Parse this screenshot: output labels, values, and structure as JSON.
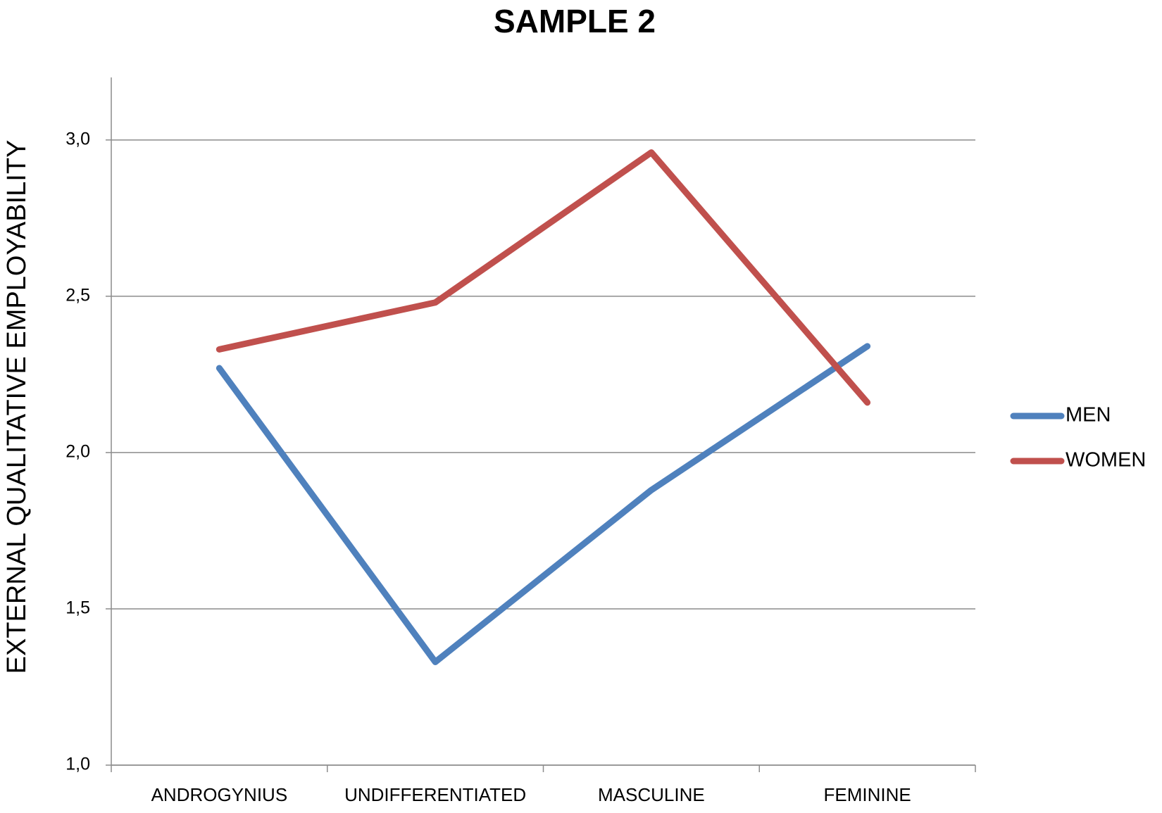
{
  "chart_data": {
    "type": "line",
    "title": "SAMPLE 2",
    "y_label": "EXTERNAL QUALITATIVE EMPLOYABILITY",
    "categories": [
      "ANDROGYNIUS",
      "UNDIFFERENTIATED",
      "MASCULINE",
      "FEMININE"
    ],
    "series": [
      {
        "name": "MEN",
        "color": "#4f81bd",
        "values": [
          2.27,
          1.33,
          1.88,
          2.34
        ]
      },
      {
        "name": "WOMEN",
        "color": "#c0504d",
        "values": [
          2.33,
          2.48,
          2.96,
          2.16
        ]
      }
    ],
    "ylim": [
      1,
      3.2
    ],
    "yticks": [
      {
        "value": 1,
        "label": "1,0"
      },
      {
        "value": 1.5,
        "label": "1,5"
      },
      {
        "value": 2,
        "label": "2,0"
      },
      {
        "value": 2.5,
        "label": "2,5"
      },
      {
        "value": 3,
        "label": "3,0"
      }
    ],
    "grid": true,
    "legend": "right"
  }
}
